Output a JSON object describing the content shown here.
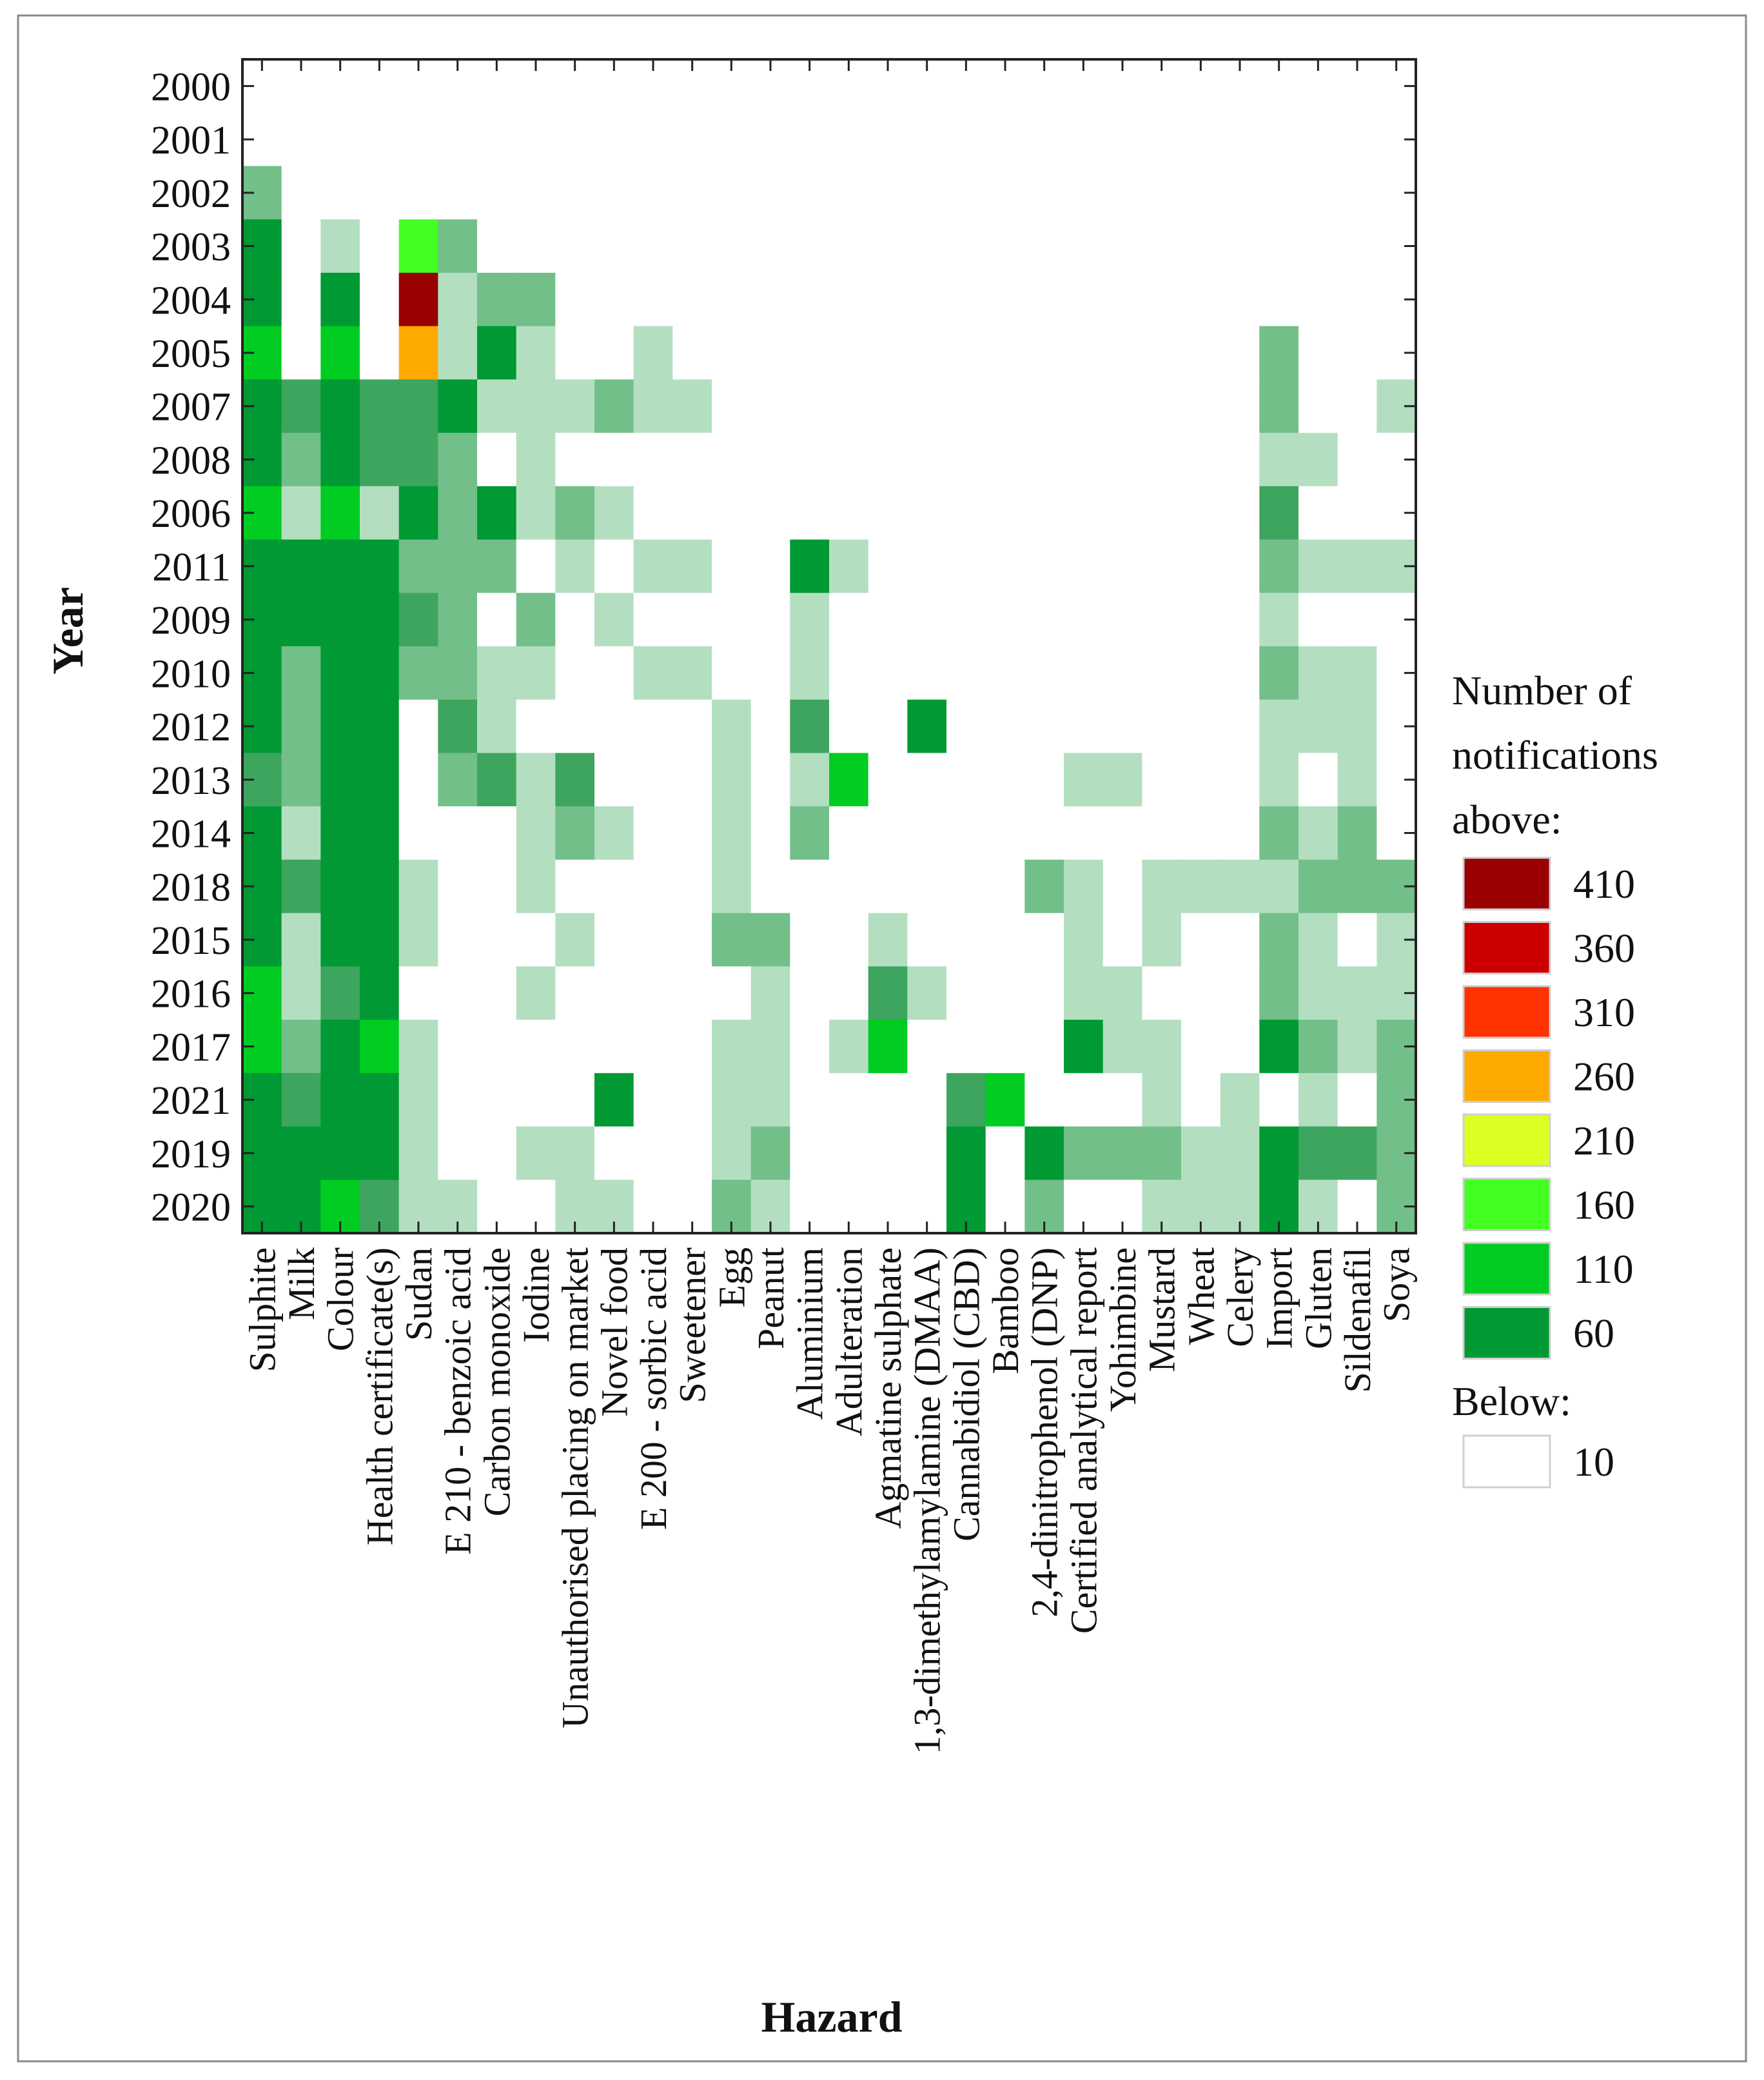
{
  "chart_data": {
    "type": "heatmap",
    "xlabel": "Hazard",
    "ylabel": "Year",
    "y_categories": [
      "2000",
      "2001",
      "2002",
      "2003",
      "2004",
      "2005",
      "2007",
      "2008",
      "2006",
      "2011",
      "2009",
      "2010",
      "2012",
      "2013",
      "2014",
      "2018",
      "2015",
      "2016",
      "2017",
      "2021",
      "2019",
      "2020"
    ],
    "x_categories": [
      "Sulphite",
      "Milk",
      "Colour",
      "Health certificate(s)",
      "Sudan",
      "E 210 - benzoic acid",
      "Carbon monoxide",
      "Iodine",
      "Unauthorised placing on market",
      "Novel food",
      "E 200 - sorbic acid",
      "Sweetener",
      "Egg",
      "Peanut",
      "Aluminium",
      "Adulteration",
      "Agmatine sulphate",
      "1,3-dimethylamylamine (DMAA)",
      "Cannabidiol (CBD)",
      "Bamboo",
      "2,4-dinitrophenol (DNP)",
      "Certified analytical report",
      "Yohimbine",
      "Mustard",
      "Wheat",
      "Celery",
      "Import",
      "Gluten",
      "Sildenafil",
      "Soya"
    ],
    "values_note": "Approximate number of notifications per cell, estimated from the color bins of the legend. Rows follow y_categories order, columns follow x_categories order.",
    "values": [
      [
        0,
        0,
        0,
        0,
        0,
        0,
        0,
        0,
        0,
        0,
        0,
        0,
        0,
        0,
        0,
        0,
        0,
        0,
        0,
        0,
        0,
        0,
        0,
        0,
        0,
        0,
        0,
        0,
        0,
        0
      ],
      [
        0,
        0,
        0,
        0,
        0,
        0,
        0,
        0,
        0,
        0,
        0,
        0,
        0,
        0,
        0,
        0,
        0,
        0,
        0,
        0,
        0,
        0,
        0,
        0,
        0,
        0,
        0,
        0,
        0,
        0
      ],
      [
        40,
        0,
        0,
        0,
        0,
        0,
        0,
        0,
        0,
        0,
        0,
        0,
        0,
        0,
        0,
        0,
        0,
        0,
        0,
        0,
        0,
        0,
        0,
        0,
        0,
        0,
        0,
        0,
        0,
        0
      ],
      [
        90,
        0,
        15,
        0,
        170,
        40,
        0,
        0,
        0,
        0,
        0,
        0,
        0,
        0,
        0,
        0,
        0,
        0,
        0,
        0,
        0,
        0,
        0,
        0,
        0,
        0,
        0,
        0,
        0,
        0
      ],
      [
        110,
        0,
        70,
        0,
        430,
        15,
        40,
        40,
        0,
        0,
        0,
        0,
        0,
        0,
        0,
        0,
        0,
        0,
        0,
        0,
        0,
        0,
        0,
        0,
        0,
        0,
        0,
        0,
        0,
        0
      ],
      [
        160,
        0,
        120,
        0,
        280,
        15,
        110,
        15,
        0,
        0,
        15,
        0,
        0,
        0,
        0,
        0,
        0,
        0,
        0,
        0,
        0,
        0,
        0,
        0,
        0,
        0,
        40,
        0,
        0,
        0
      ],
      [
        100,
        55,
        110,
        55,
        55,
        70,
        15,
        15,
        15,
        40,
        15,
        15,
        0,
        0,
        0,
        0,
        0,
        0,
        0,
        0,
        0,
        0,
        0,
        0,
        0,
        0,
        40,
        0,
        0,
        15
      ],
      [
        100,
        40,
        110,
        55,
        55,
        40,
        0,
        15,
        0,
        0,
        0,
        0,
        0,
        0,
        0,
        0,
        0,
        0,
        0,
        0,
        0,
        0,
        0,
        0,
        0,
        0,
        15,
        15,
        0,
        0
      ],
      [
        120,
        15,
        130,
        15,
        90,
        40,
        70,
        15,
        40,
        15,
        0,
        0,
        0,
        0,
        0,
        0,
        0,
        0,
        0,
        0,
        0,
        0,
        0,
        0,
        0,
        0,
        55,
        0,
        0,
        0
      ],
      [
        80,
        80,
        90,
        90,
        40,
        40,
        40,
        0,
        15,
        0,
        15,
        15,
        0,
        0,
        70,
        15,
        0,
        0,
        0,
        0,
        0,
        0,
        0,
        0,
        0,
        0,
        40,
        15,
        15,
        15
      ],
      [
        90,
        90,
        100,
        80,
        55,
        40,
        0,
        40,
        0,
        15,
        0,
        0,
        0,
        0,
        15,
        0,
        0,
        0,
        0,
        0,
        0,
        0,
        0,
        0,
        0,
        0,
        15,
        0,
        0,
        0
      ],
      [
        90,
        40,
        90,
        75,
        40,
        40,
        15,
        15,
        0,
        0,
        15,
        15,
        0,
        0,
        15,
        0,
        0,
        0,
        0,
        0,
        0,
        0,
        0,
        0,
        0,
        0,
        40,
        15,
        15,
        0
      ],
      [
        90,
        40,
        80,
        80,
        0,
        55,
        15,
        0,
        0,
        0,
        0,
        0,
        15,
        0,
        55,
        0,
        0,
        70,
        0,
        0,
        0,
        0,
        0,
        0,
        0,
        0,
        15,
        15,
        15,
        0
      ],
      [
        55,
        40,
        80,
        90,
        0,
        40,
        55,
        15,
        55,
        0,
        0,
        0,
        15,
        0,
        15,
        150,
        0,
        0,
        0,
        0,
        0,
        15,
        15,
        0,
        0,
        0,
        15,
        0,
        15,
        0
      ],
      [
        85,
        15,
        90,
        85,
        0,
        0,
        0,
        15,
        40,
        15,
        0,
        0,
        15,
        0,
        40,
        0,
        0,
        0,
        0,
        0,
        0,
        0,
        0,
        0,
        0,
        0,
        40,
        15,
        40,
        0
      ],
      [
        110,
        55,
        90,
        85,
        15,
        0,
        0,
        15,
        0,
        0,
        0,
        0,
        15,
        0,
        0,
        0,
        0,
        0,
        0,
        0,
        40,
        15,
        0,
        15,
        15,
        15,
        15,
        40,
        40,
        40
      ],
      [
        95,
        15,
        80,
        90,
        15,
        0,
        0,
        0,
        15,
        0,
        0,
        0,
        40,
        40,
        0,
        0,
        15,
        0,
        0,
        0,
        0,
        15,
        0,
        15,
        0,
        0,
        40,
        15,
        0,
        15
      ],
      [
        120,
        15,
        55,
        110,
        0,
        0,
        0,
        15,
        0,
        0,
        0,
        0,
        0,
        15,
        0,
        0,
        55,
        15,
        0,
        0,
        0,
        15,
        15,
        0,
        0,
        0,
        40,
        15,
        15,
        15
      ],
      [
        120,
        40,
        80,
        140,
        15,
        0,
        0,
        0,
        0,
        0,
        0,
        0,
        15,
        15,
        0,
        15,
        120,
        0,
        0,
        0,
        0,
        80,
        15,
        15,
        0,
        0,
        80,
        40,
        15,
        40
      ],
      [
        100,
        55,
        80,
        75,
        15,
        0,
        0,
        0,
        0,
        80,
        0,
        0,
        15,
        15,
        0,
        0,
        0,
        0,
        55,
        160,
        0,
        0,
        0,
        15,
        0,
        15,
        0,
        15,
        0,
        40
      ],
      [
        100,
        90,
        90,
        90,
        15,
        0,
        0,
        15,
        15,
        0,
        0,
        0,
        15,
        40,
        0,
        0,
        0,
        0,
        90,
        0,
        90,
        40,
        40,
        40,
        15,
        15,
        85,
        55,
        55,
        40
      ],
      [
        100,
        90,
        160,
        55,
        15,
        15,
        0,
        0,
        15,
        15,
        0,
        0,
        40,
        15,
        0,
        0,
        0,
        0,
        80,
        0,
        40,
        0,
        0,
        15,
        15,
        15,
        85,
        15,
        0,
        40
      ]
    ],
    "legend": {
      "title": "Number of notifications above:",
      "title_lines": [
        "Number of",
        "notifications",
        "above:"
      ],
      "bins": [
        {
          "label": "410",
          "color": "#990000"
        },
        {
          "label": "360",
          "color": "#cc0000"
        },
        {
          "label": "310",
          "color": "#ff3300"
        },
        {
          "label": "260",
          "color": "#ffaa00"
        },
        {
          "label": "210",
          "color": "#ddff22"
        },
        {
          "label": "160",
          "color": "#44ff22"
        },
        {
          "label": "110",
          "color": "#00cc22"
        },
        {
          "label": "60",
          "color": "#009933"
        }
      ],
      "below_title": "Below:",
      "below": {
        "label": "10",
        "color": "#ffffff"
      }
    },
    "low_value_colors": {
      "above_10": "#b3dfc0",
      "above_35": "#72bf8a",
      "above_50": "#3ea55e"
    }
  }
}
